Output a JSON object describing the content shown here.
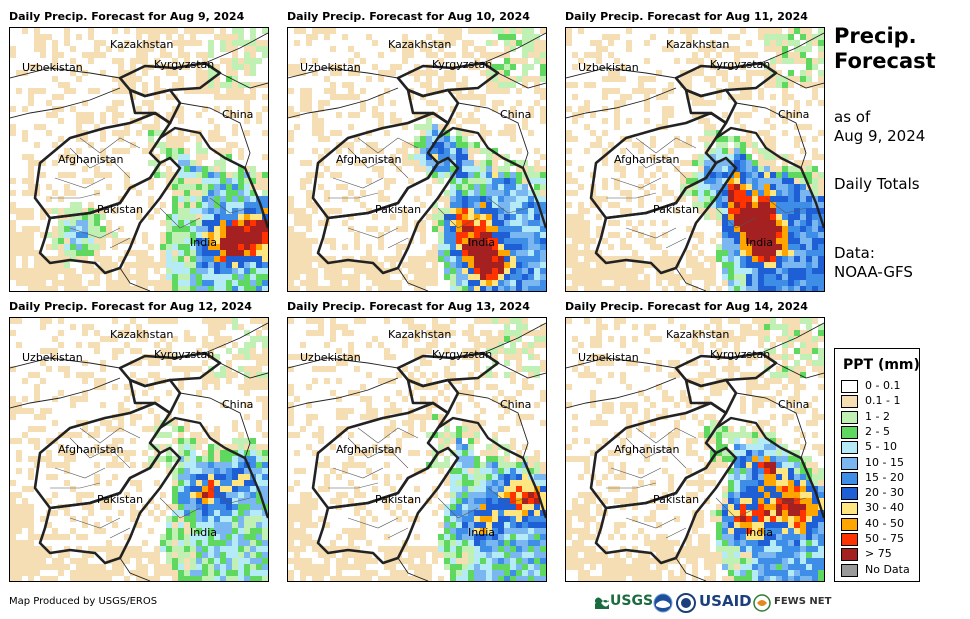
{
  "panels": [
    {
      "title": "Daily Precip. Forecast for Aug 9, 2024"
    },
    {
      "title": "Daily Precip. Forecast for Aug 10, 2024"
    },
    {
      "title": "Daily Precip. Forecast for Aug 11, 2024"
    },
    {
      "title": "Daily Precip. Forecast for Aug 12, 2024"
    },
    {
      "title": "Daily Precip. Forecast for Aug 13, 2024"
    },
    {
      "title": "Daily Precip. Forecast for Aug 14, 2024"
    }
  ],
  "map_labels": {
    "kazakhstan": "Kazakhstan",
    "uzbekistan": "Uzbekistan",
    "kyrgyzstan": "Kyrgyzstan",
    "china": "China",
    "afghanistan": "Afghanistan",
    "pakistan": "Pakistan",
    "india": "India"
  },
  "sidebar": {
    "title": "Precip. Forecast",
    "asof_label": "as of",
    "asof_date": "Aug 9, 2024",
    "totals": "Daily Totals",
    "data_label": "Data:",
    "data_source": "NOAA-GFS"
  },
  "legend": {
    "title": "PPT (mm)",
    "items": [
      {
        "label": "0 - 0.1",
        "color": "#ffffff"
      },
      {
        "label": "0.1 - 1",
        "color": "#f5deb3"
      },
      {
        "label": "1 - 2",
        "color": "#c1f0b4"
      },
      {
        "label": "2 - 5",
        "color": "#5fd85f"
      },
      {
        "label": "5 - 10",
        "color": "#b5ebf7"
      },
      {
        "label": "10 - 15",
        "color": "#7ab6f0"
      },
      {
        "label": "15 - 20",
        "color": "#3e8ee8"
      },
      {
        "label": "20 - 30",
        "color": "#1f5fd6"
      },
      {
        "label": "30 - 40",
        "color": "#ffe680"
      },
      {
        "label": "40 - 50",
        "color": "#ffa500"
      },
      {
        "label": "50 - 75",
        "color": "#ff3300"
      },
      {
        "label": "> 75",
        "color": "#a52020"
      },
      {
        "label": "No Data",
        "color": "#999999"
      }
    ]
  },
  "footer": {
    "credit": "Map Produced by USGS/EROS",
    "logo_usgs": "USGS",
    "logo_usaid": "USAID",
    "logo_fews": "FEWS NET"
  }
}
